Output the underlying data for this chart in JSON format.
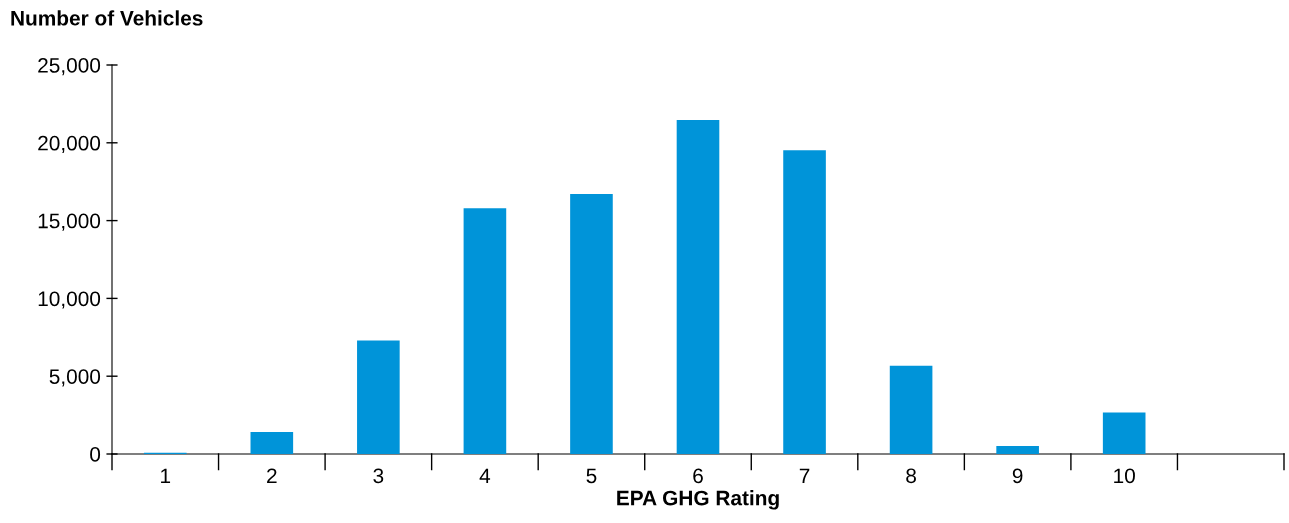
{
  "chart_data": {
    "type": "bar",
    "ylabel": "Number of Vehicles",
    "xlabel": "EPA GHG Rating",
    "categories": [
      "1",
      "2",
      "3",
      "4",
      "5",
      "6",
      "7",
      "8",
      "9",
      "10",
      null
    ],
    "values": [
      80,
      1420,
      7300,
      15800,
      16710,
      21470,
      19520,
      5670,
      510,
      2670,
      null
    ],
    "color": "#0094d9",
    "ylim": [
      0,
      25000
    ],
    "yticks": [
      {
        "value": 0,
        "label": "0"
      },
      {
        "value": 5000,
        "label": "5,000"
      },
      {
        "value": 10000,
        "label": "10,000"
      },
      {
        "value": 15000,
        "label": "15,000"
      },
      {
        "value": 20000,
        "label": "20,000"
      },
      {
        "value": 25000,
        "label": "25,000"
      }
    ],
    "grid": false,
    "legend": false
  }
}
